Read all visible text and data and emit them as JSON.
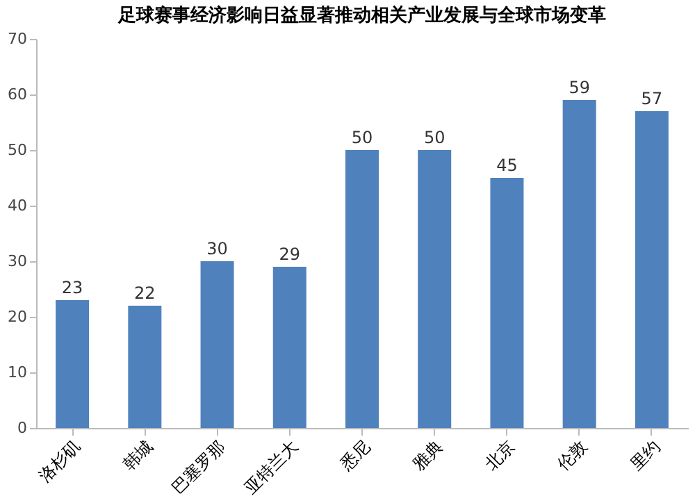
{
  "chart_data": {
    "type": "bar",
    "title": "足球赛事经济影响日益显著推动相关产业发展与全球市场变革",
    "categories": [
      "洛杉矶",
      "韩城",
      "巴塞罗那",
      "亚特兰大",
      "悉尼",
      "雅典",
      "北京",
      "伦敦",
      "里约"
    ],
    "values": [
      23,
      22,
      30,
      29,
      50,
      50,
      45,
      59,
      57
    ],
    "color": "#4f81bd",
    "ylim": [
      0,
      70
    ],
    "yticks": [
      0,
      10,
      20,
      30,
      40,
      50,
      60,
      70
    ],
    "grid": false,
    "data_labels": true
  }
}
